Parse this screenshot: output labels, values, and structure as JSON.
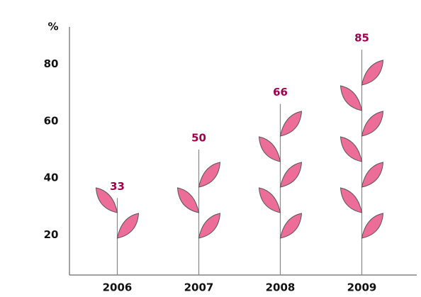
{
  "chart_data": {
    "type": "plant",
    "ylabel": "%",
    "categories": [
      "2006",
      "2007",
      "2008",
      "2009"
    ],
    "values": [
      33,
      50,
      66,
      85
    ],
    "color": "#ec6d98",
    "label_color": "#a0004c",
    "ylim": [
      6,
      93
    ],
    "yticks": [
      20,
      40,
      60,
      80
    ],
    "grid": false
  }
}
